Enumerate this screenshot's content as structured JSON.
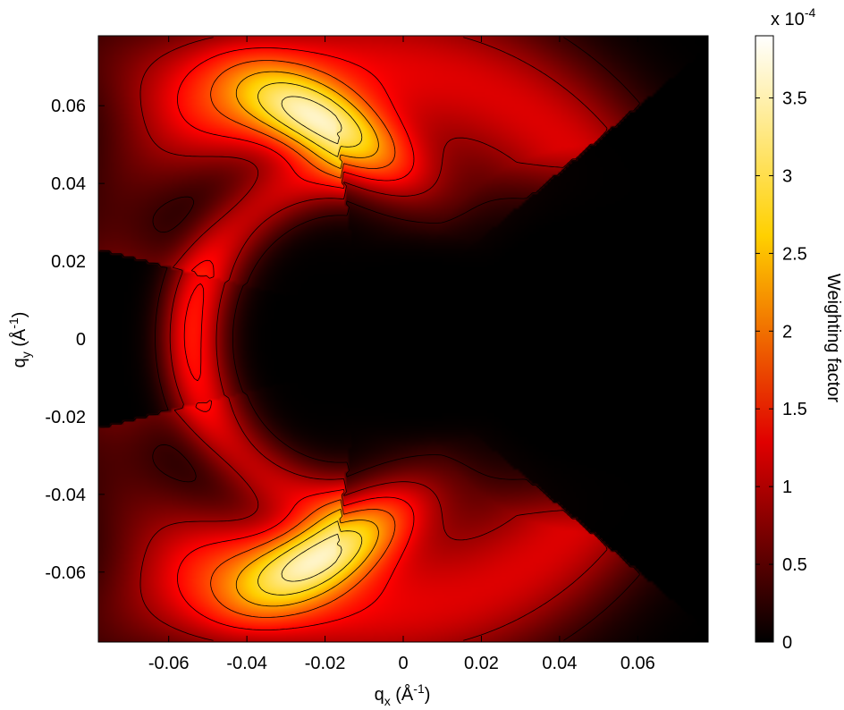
{
  "chart_data": {
    "type": "heatmap",
    "title": "",
    "colormap": "hot",
    "colors": {
      "cmap_low": "#000000",
      "cmap_mid1": "#e00000",
      "cmap_mid2": "#ffd000",
      "cmap_high": "#ffffff",
      "contour_line": "#000000"
    },
    "x": {
      "label_main": "q",
      "label_sub": "x",
      "label_unit_open": " (Å",
      "label_unit_sup": "-1",
      "label_unit_close": ")",
      "lim": [
        -0.078,
        0.078
      ],
      "ticks": [
        -0.06,
        -0.04,
        -0.02,
        0,
        0.02,
        0.04,
        0.06
      ],
      "tick_labels": [
        "-0.06",
        "-0.04",
        "-0.02",
        "0",
        "0.02",
        "0.04",
        "0.06"
      ]
    },
    "y": {
      "label_main": "q",
      "label_sub": "y",
      "label_unit_open": " (Å",
      "label_unit_sup": "-1",
      "label_unit_close": ")",
      "lim": [
        -0.078,
        0.078
      ],
      "ticks": [
        -0.06,
        -0.04,
        -0.02,
        0,
        0.02,
        0.04,
        0.06
      ],
      "tick_labels": [
        "-0.06",
        "-0.04",
        "-0.02",
        "0",
        "0.02",
        "0.04",
        "0.06"
      ]
    },
    "colorbar": {
      "label": "Weighting factor",
      "multiplier_base": "x 10",
      "multiplier_exp": "-4",
      "lim": [
        0,
        3.9
      ],
      "ticks": [
        0,
        0.5,
        1,
        1.5,
        2,
        2.5,
        3,
        3.5
      ],
      "tick_labels": [
        "0",
        "0.5",
        "1",
        "1.5",
        "2",
        "2.5",
        "3",
        "3.5"
      ]
    },
    "features": [
      {
        "name": "upper lobe",
        "center": [
          -0.015,
          0.053
        ],
        "peak": 3.9
      },
      {
        "name": "lower lobe",
        "center": [
          -0.015,
          -0.053
        ],
        "peak": 3.9
      },
      {
        "name": "inner crescent",
        "center": [
          -0.055,
          0.0
        ],
        "peak": 1.5
      }
    ],
    "contour_levels": [
      0.3,
      0.8,
      1.3,
      1.8,
      2.3,
      2.8,
      3.3,
      3.7
    ]
  }
}
